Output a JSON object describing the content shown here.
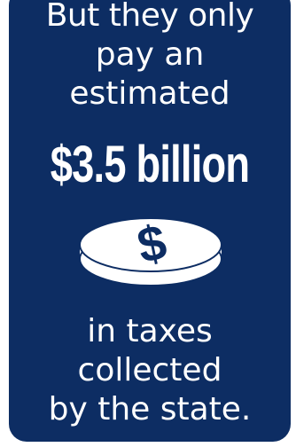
{
  "infographic": {
    "line1": "But they only",
    "line2": "pay an",
    "line3": "estimated",
    "amount": "$3.5 billion",
    "line4": "in taxes",
    "line5": "collected",
    "line6": "by the state."
  },
  "icon": "dollar-coin-icon",
  "colors": {
    "background": "#0d2d63",
    "text": "#ffffff",
    "coin_fill": "#ffffff",
    "coin_symbol": "#0d2d63"
  }
}
